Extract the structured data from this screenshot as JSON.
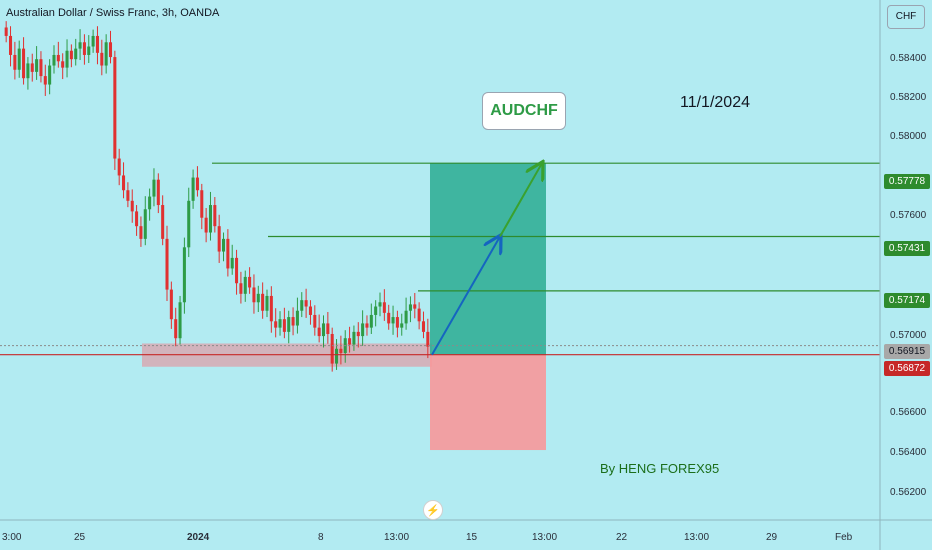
{
  "header": {
    "title": "Australian Dollar / Swiss Franc, 3h, OANDA",
    "currency": "CHF"
  },
  "annotations": {
    "ticker": "AUDCHF",
    "date": "11/1/2024",
    "author": "By HENG FOREX95"
  },
  "price_axis": [
    "0.58400",
    "0.58200",
    "0.58000",
    "0.57600",
    "0.57000",
    "0.56600",
    "0.56400",
    "0.56200"
  ],
  "price_tags": {
    "tp2": "0.57778",
    "tp1": "0.57431",
    "level": "0.57174",
    "current": "0.56915",
    "entry": "0.56872"
  },
  "time_axis": [
    "3:00",
    "25",
    "2024",
    "8",
    "13:00",
    "15",
    "13:00",
    "22",
    "13:00",
    "29",
    "Feb"
  ],
  "colors": {
    "background": "#b2ebf2",
    "bull": "#2e9b46",
    "bear": "#e03131",
    "target_zone": "#2aab92",
    "stop_zone": "#f7989a",
    "green_line": "#2e8b2e",
    "entry_line": "#c62828",
    "arrow_blue": "#1565c0",
    "arrow_green": "#3aa12e"
  },
  "icons": {
    "event": "lightning-bolt-icon"
  },
  "chart_data": {
    "type": "candlestick",
    "title": "Australian Dollar / Swiss Franc, 3h, OANDA",
    "y_unit": "CHF",
    "y_range": [
      0.5609,
      0.5855
    ],
    "x_ticks": [
      "3:00",
      "25",
      "2024",
      "8",
      "13:00",
      "15",
      "13:00",
      "22",
      "13:00",
      "29",
      "Feb"
    ],
    "y_ticks": [
      0.584,
      0.582,
      0.58,
      0.576,
      0.57,
      0.566,
      0.564,
      0.562
    ],
    "horizontal_levels": [
      0.57778,
      0.57431,
      0.57174,
      0.56872
    ],
    "current_price": 0.56915,
    "position": {
      "side": "long",
      "entry": 0.56872,
      "target": 0.57778,
      "stop": 0.56421
    },
    "support_zone": [
      0.56815,
      0.56925
    ],
    "candles_close": [
      0.5838,
      0.5829,
      0.5822,
      0.5832,
      0.5818,
      0.5825,
      0.5821,
      0.5827,
      0.5819,
      0.5815,
      0.5824,
      0.5829,
      0.5826,
      0.5823,
      0.5831,
      0.5827,
      0.5832,
      0.5835,
      0.5829,
      0.5833,
      0.5838,
      0.583,
      0.5824,
      0.5835,
      0.5828,
      0.578,
      0.5772,
      0.5765,
      0.576,
      0.5755,
      0.5748,
      0.5742,
      0.5756,
      0.5762,
      0.577,
      0.5758,
      0.5742,
      0.5718,
      0.5704,
      0.5695,
      0.5712,
      0.5738,
      0.576,
      0.5771,
      0.5765,
      0.5752,
      0.5745,
      0.5758,
      0.5748,
      0.5736,
      0.5742,
      0.5728,
      0.5733,
      0.5721,
      0.5716,
      0.5724,
      0.5719,
      0.5712,
      0.5716,
      0.5708,
      0.5715,
      0.5703,
      0.57,
      0.5704,
      0.5698,
      0.5705,
      0.5701,
      0.5708,
      0.5713,
      0.571,
      0.5706,
      0.57,
      0.5696,
      0.5702,
      0.5697,
      0.5683,
      0.569,
      0.5688,
      0.5695,
      0.5692,
      0.5698,
      0.5696,
      0.5702,
      0.57,
      0.5706,
      0.571,
      0.5712,
      0.5707,
      0.5702,
      0.5705,
      0.57,
      0.5702,
      0.5708,
      0.5711,
      0.5709,
      0.5703,
      0.5698,
      0.5691
    ]
  }
}
